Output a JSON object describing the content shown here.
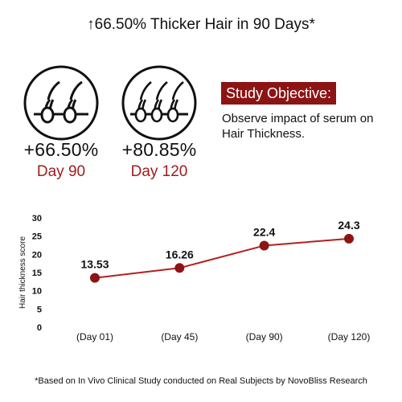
{
  "headline": "↑66.50% Thicker Hair in 90 Days*",
  "stats": [
    {
      "percent": "+66.50%",
      "day": "Day 90",
      "icon": "hair-follicle-two-strands-icon"
    },
    {
      "percent": "+80.85%",
      "day": "Day 120",
      "icon": "hair-follicle-three-strands-icon"
    }
  ],
  "objective": {
    "badge": "Study Objective:",
    "text": "Observe impact of serum on Hair Thickness."
  },
  "footnote": "*Based on In Vivo Clinical Study conducted on Real Subjects by NovoBliss Research",
  "colors": {
    "accent": "#8d1414",
    "line": "#b51f1f",
    "point": "#8d1414",
    "text": "#111111"
  },
  "chart_data": {
    "type": "line",
    "title": "",
    "xlabel": "",
    "ylabel": "Hair thickness score",
    "categories": [
      "(Day 01)",
      "(Day 45)",
      "(Day 90)",
      "(Day 120)"
    ],
    "values": [
      13.53,
      16.26,
      22.4,
      24.3
    ],
    "data_labels": [
      "13.53",
      "16.26",
      "22.4",
      "24.3"
    ],
    "ylim": [
      0,
      30
    ],
    "yticks": [
      0,
      5,
      10,
      15,
      20,
      25,
      30
    ],
    "grid": false,
    "legend": "none"
  }
}
